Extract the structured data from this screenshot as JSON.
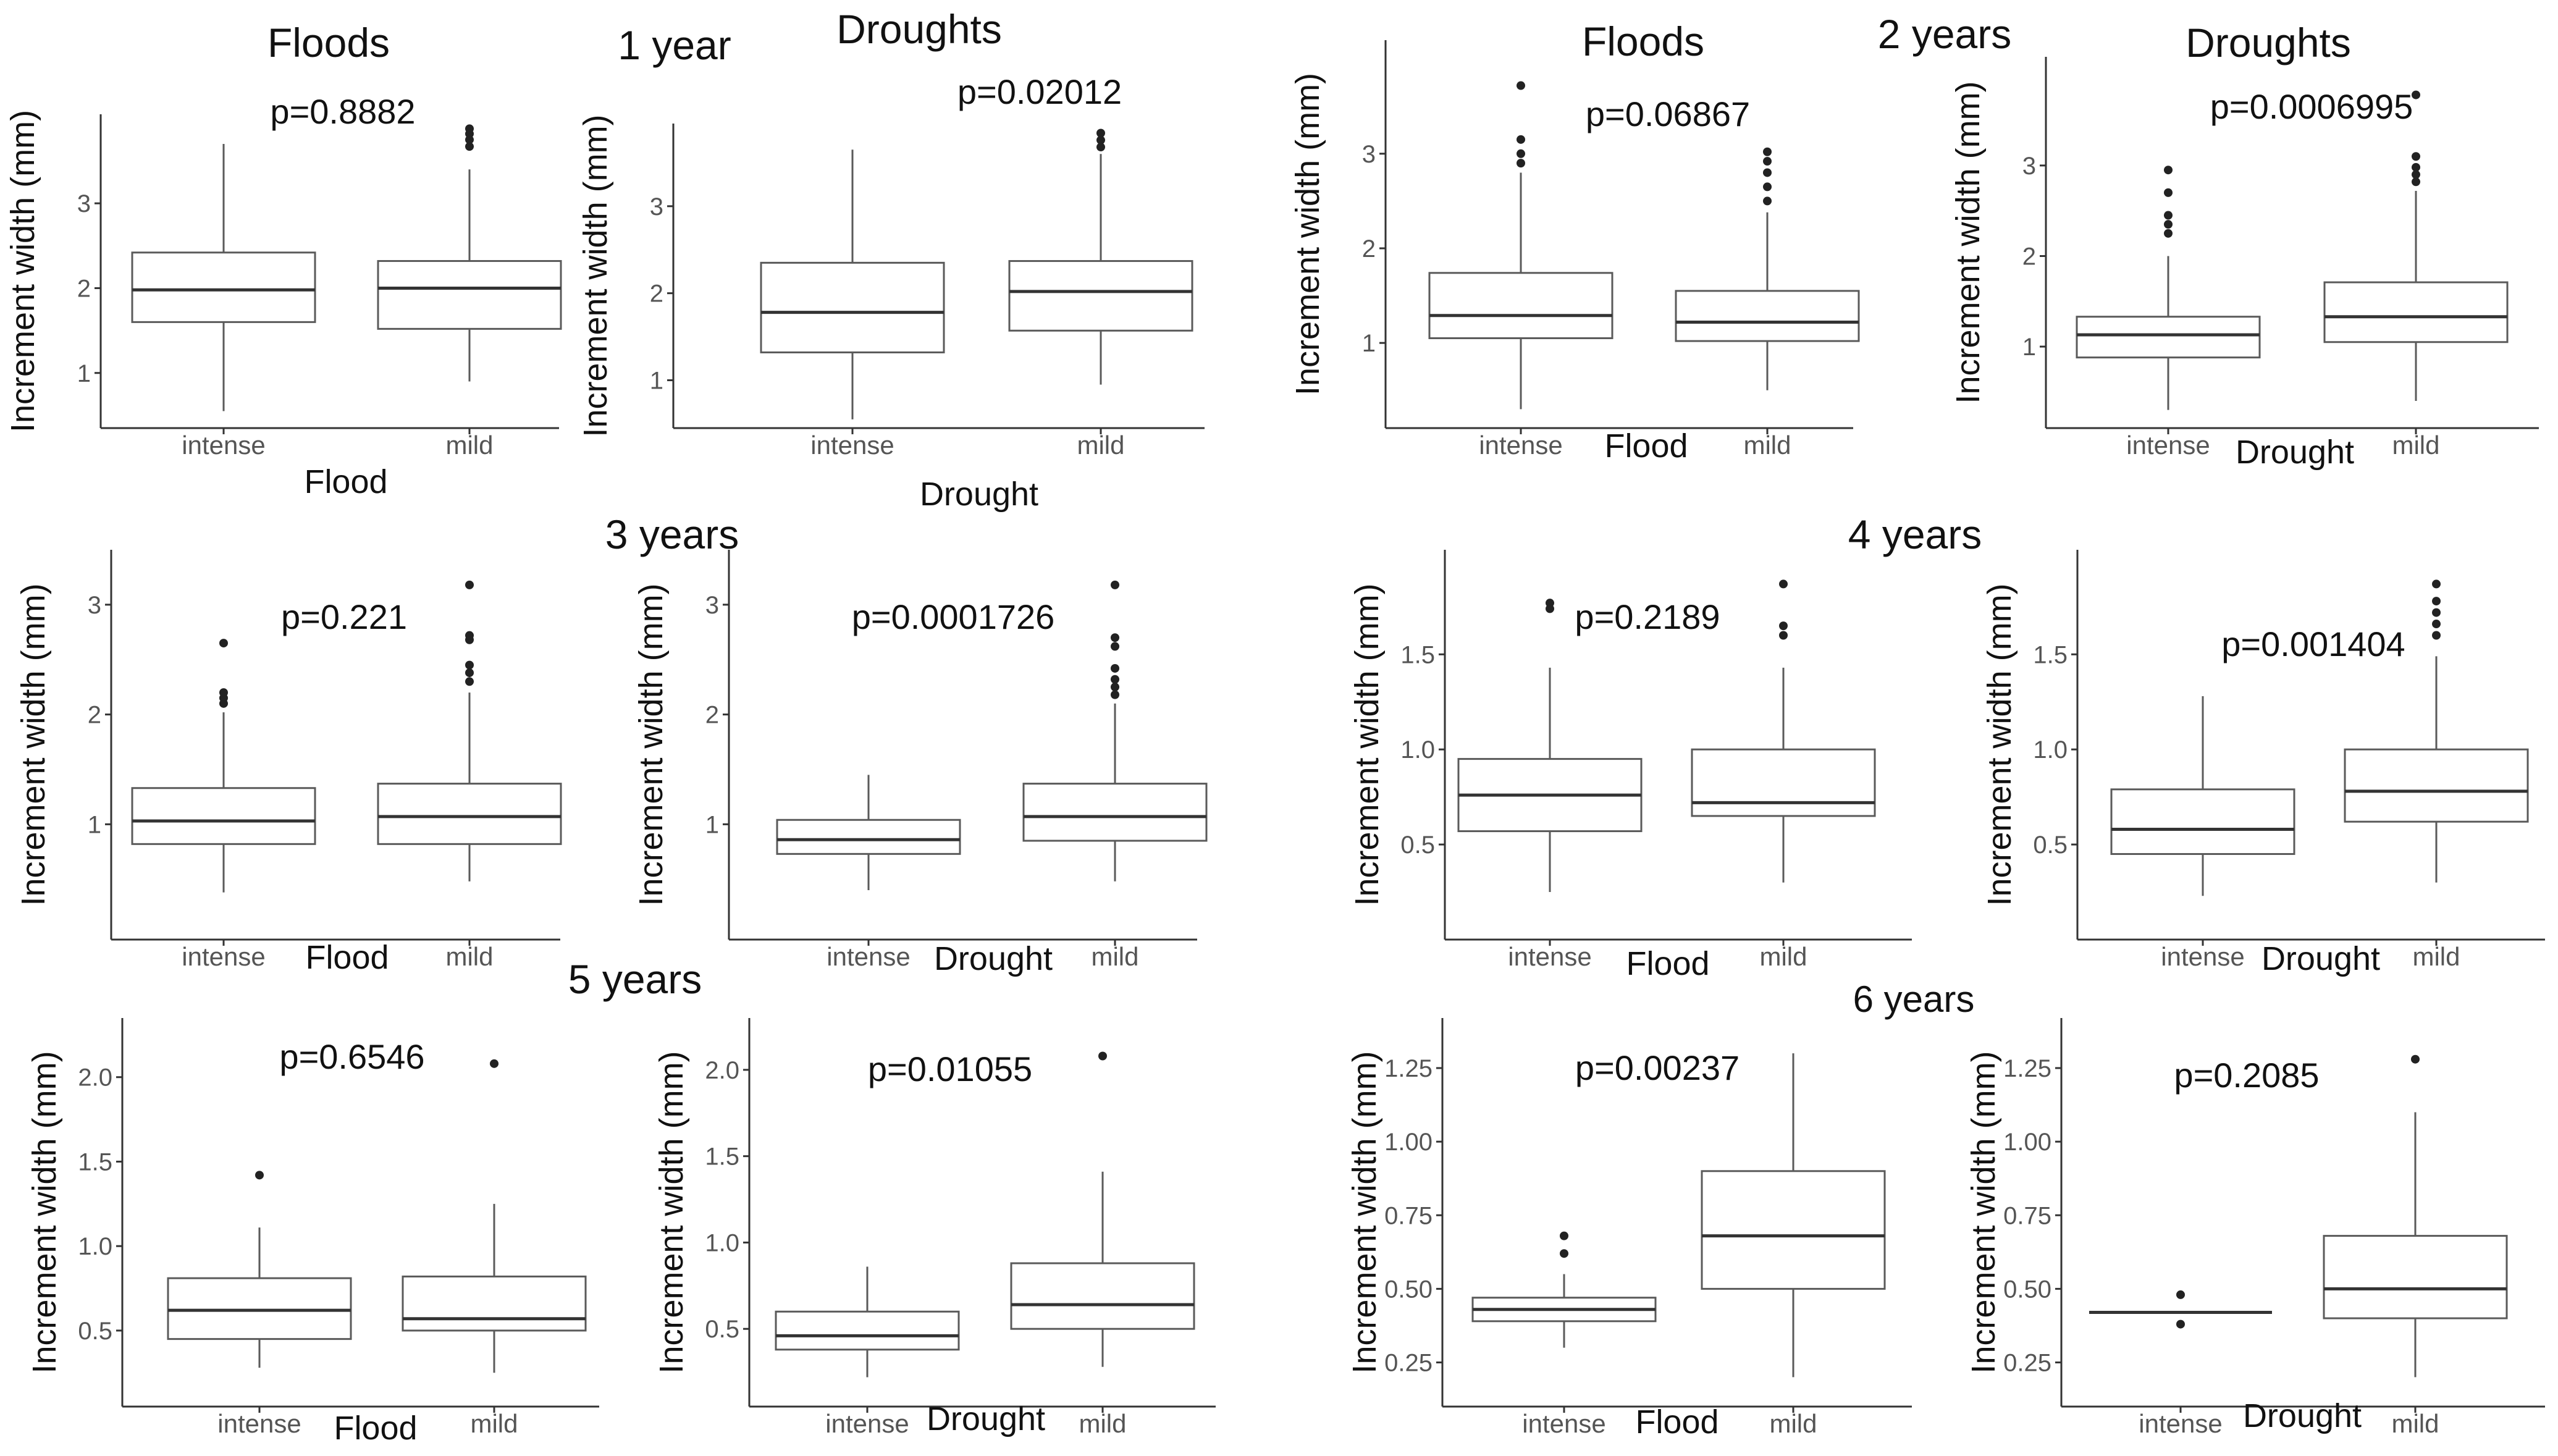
{
  "figure": {
    "column_titles": {
      "flood": "Floods",
      "drought": "Droughts"
    },
    "period_labels": [
      "1 year",
      "2 years",
      "3 years",
      "4 years",
      "5 years",
      "6 years"
    ]
  },
  "style": {
    "box_stroke": "#5a5a5a",
    "median_stroke": "#333333",
    "outlier_fill": "#222222",
    "axis_color": "#333333",
    "text_color": "#111111",
    "tick_label_color": "#555555"
  },
  "chart_data": [
    {
      "id": "y1-flood",
      "type": "boxplot",
      "period": "1 year",
      "title": "Floods",
      "xlabel": "Flood",
      "ylabel": "Increment width (mm)",
      "p_label": "p=0.8882",
      "ylim": [
        0.35,
        4.05
      ],
      "yticks": [
        1,
        2,
        3
      ],
      "ytick_labels": [
        "1",
        "2",
        "3"
      ],
      "groups": [
        {
          "category": "intense",
          "whisker_low": 0.55,
          "q1": 1.6,
          "median": 1.98,
          "q3": 2.42,
          "whisker_high": 3.7,
          "outliers": []
        },
        {
          "category": "mild",
          "whisker_low": 0.9,
          "q1": 1.52,
          "median": 2.0,
          "q3": 2.32,
          "whisker_high": 3.4,
          "outliers": [
            3.67,
            3.75,
            3.82,
            3.88
          ]
        }
      ]
    },
    {
      "id": "y1-drought",
      "type": "boxplot",
      "period": "1 year",
      "title": "Droughts",
      "xlabel": "Drought",
      "ylabel": "Increment width (mm)",
      "p_label": "p=0.02012",
      "ylim": [
        0.45,
        3.95
      ],
      "yticks": [
        1,
        2,
        3
      ],
      "ytick_labels": [
        "1",
        "2",
        "3"
      ],
      "groups": [
        {
          "category": "intense",
          "whisker_low": 0.55,
          "q1": 1.32,
          "median": 1.78,
          "q3": 2.35,
          "whisker_high": 3.65,
          "outliers": []
        },
        {
          "category": "mild",
          "whisker_low": 0.95,
          "q1": 1.57,
          "median": 2.02,
          "q3": 2.37,
          "whisker_high": 3.6,
          "outliers": [
            3.68,
            3.76,
            3.84
          ]
        }
      ]
    },
    {
      "id": "y2-flood",
      "type": "boxplot",
      "period": "2 years",
      "title": "Floods",
      "xlabel": "Flood",
      "ylabel": "Increment width (mm)",
      "p_label": "p=0.06867",
      "ylim": [
        0.1,
        4.2
      ],
      "yticks": [
        1,
        2,
        3
      ],
      "ytick_labels": [
        "1",
        "2",
        "3"
      ],
      "groups": [
        {
          "category": "intense",
          "whisker_low": 0.3,
          "q1": 1.05,
          "median": 1.29,
          "q3": 1.74,
          "whisker_high": 2.8,
          "outliers": [
            2.9,
            3.0,
            3.15,
            3.72
          ]
        },
        {
          "category": "mild",
          "whisker_low": 0.5,
          "q1": 1.02,
          "median": 1.22,
          "q3": 1.55,
          "whisker_high": 2.38,
          "outliers": [
            2.5,
            2.65,
            2.8,
            2.92,
            3.02
          ]
        }
      ]
    },
    {
      "id": "y2-drought",
      "type": "boxplot",
      "period": "2 years",
      "title": "Droughts",
      "xlabel": "Drought",
      "ylabel": "Increment width (mm)",
      "p_label": "p=0.0006995",
      "ylim": [
        0.1,
        4.2
      ],
      "yticks": [
        1,
        2,
        3
      ],
      "ytick_labels": [
        "1",
        "2",
        "3"
      ],
      "groups": [
        {
          "category": "intense",
          "whisker_low": 0.3,
          "q1": 0.88,
          "median": 1.13,
          "q3": 1.33,
          "whisker_high": 2.0,
          "outliers": [
            2.25,
            2.35,
            2.45,
            2.7,
            2.95
          ]
        },
        {
          "category": "mild",
          "whisker_low": 0.4,
          "q1": 1.05,
          "median": 1.33,
          "q3": 1.71,
          "whisker_high": 2.72,
          "outliers": [
            2.82,
            2.9,
            2.98,
            3.1,
            3.78
          ]
        }
      ]
    },
    {
      "id": "y3-flood",
      "type": "boxplot",
      "period": "3 years",
      "title": "",
      "xlabel": "Flood",
      "ylabel": "Increment width (mm)",
      "p_label": "p=0.221",
      "ylim": [
        -0.05,
        3.5
      ],
      "yticks": [
        1,
        2,
        3
      ],
      "ytick_labels": [
        "1",
        "2",
        "3"
      ],
      "groups": [
        {
          "category": "intense",
          "whisker_low": 0.38,
          "q1": 0.82,
          "median": 1.03,
          "q3": 1.33,
          "whisker_high": 2.02,
          "outliers": [
            2.1,
            2.15,
            2.2,
            2.65
          ]
        },
        {
          "category": "mild",
          "whisker_low": 0.48,
          "q1": 0.82,
          "median": 1.07,
          "q3": 1.37,
          "whisker_high": 2.2,
          "outliers": [
            2.3,
            2.38,
            2.45,
            2.68,
            2.72,
            3.18
          ]
        }
      ]
    },
    {
      "id": "y3-drought",
      "type": "boxplot",
      "period": "3 years",
      "title": "",
      "xlabel": "Drought",
      "ylabel": "Increment width (mm)",
      "p_label": "p=0.0001726",
      "ylim": [
        -0.05,
        3.5
      ],
      "yticks": [
        1,
        2,
        3
      ],
      "ytick_labels": [
        "1",
        "2",
        "3"
      ],
      "groups": [
        {
          "category": "intense",
          "whisker_low": 0.4,
          "q1": 0.73,
          "median": 0.86,
          "q3": 1.04,
          "whisker_high": 1.45,
          "outliers": []
        },
        {
          "category": "mild",
          "whisker_low": 0.48,
          "q1": 0.85,
          "median": 1.07,
          "q3": 1.37,
          "whisker_high": 2.1,
          "outliers": [
            2.18,
            2.25,
            2.32,
            2.42,
            2.62,
            2.7,
            3.18
          ]
        }
      ]
    },
    {
      "id": "y4-flood",
      "type": "boxplot",
      "period": "4 years",
      "title": "",
      "xlabel": "Flood",
      "ylabel": "Increment width (mm)",
      "p_label": "p=0.2189",
      "ylim": [
        0.0,
        2.05
      ],
      "yticks": [
        0.5,
        1.0,
        1.5
      ],
      "ytick_labels": [
        "0.5",
        "1.0",
        "1.5"
      ],
      "groups": [
        {
          "category": "intense",
          "whisker_low": 0.25,
          "q1": 0.57,
          "median": 0.76,
          "q3": 0.95,
          "whisker_high": 1.43,
          "outliers": [
            1.74,
            1.77
          ]
        },
        {
          "category": "mild",
          "whisker_low": 0.3,
          "q1": 0.65,
          "median": 0.72,
          "q3": 1.0,
          "whisker_high": 1.43,
          "outliers": [
            1.6,
            1.65,
            1.87
          ]
        }
      ]
    },
    {
      "id": "y4-drought",
      "type": "boxplot",
      "period": "4 years",
      "title": "",
      "xlabel": "Drought",
      "ylabel": "Increment width (mm)",
      "p_label": "p=0.001404",
      "ylim": [
        0.0,
        2.05
      ],
      "yticks": [
        0.5,
        1.0,
        1.5
      ],
      "ytick_labels": [
        "0.5",
        "1.0",
        "1.5"
      ],
      "groups": [
        {
          "category": "intense",
          "whisker_low": 0.23,
          "q1": 0.45,
          "median": 0.58,
          "q3": 0.79,
          "whisker_high": 1.28,
          "outliers": []
        },
        {
          "category": "mild",
          "whisker_low": 0.3,
          "q1": 0.62,
          "median": 0.78,
          "q3": 1.0,
          "whisker_high": 1.49,
          "outliers": [
            1.6,
            1.66,
            1.72,
            1.78,
            1.87
          ]
        }
      ]
    },
    {
      "id": "y5-flood",
      "type": "boxplot",
      "period": "5 years",
      "title": "",
      "xlabel": "Flood",
      "ylabel": "Increment width (mm)",
      "p_label": "p=0.6546",
      "ylim": [
        0.05,
        2.35
      ],
      "yticks": [
        0.5,
        1.0,
        1.5,
        2.0
      ],
      "ytick_labels": [
        "0.5",
        "1.0",
        "1.5",
        "2.0"
      ],
      "groups": [
        {
          "category": "intense",
          "whisker_low": 0.28,
          "q1": 0.45,
          "median": 0.62,
          "q3": 0.81,
          "whisker_high": 1.11,
          "outliers": [
            1.42
          ]
        },
        {
          "category": "mild",
          "whisker_low": 0.25,
          "q1": 0.5,
          "median": 0.57,
          "q3": 0.82,
          "whisker_high": 1.25,
          "outliers": [
            2.08
          ]
        }
      ]
    },
    {
      "id": "y5-drought",
      "type": "boxplot",
      "period": "5 years",
      "title": "",
      "xlabel": "Drought",
      "ylabel": "Increment width (mm)",
      "p_label": "p=0.01055",
      "ylim": [
        0.05,
        2.3
      ],
      "yticks": [
        0.5,
        1.0,
        1.5,
        2.0
      ],
      "ytick_labels": [
        "0.5",
        "1.0",
        "1.5",
        "2.0"
      ],
      "groups": [
        {
          "category": "intense",
          "whisker_low": 0.22,
          "q1": 0.38,
          "median": 0.46,
          "q3": 0.6,
          "whisker_high": 0.86,
          "outliers": []
        },
        {
          "category": "mild",
          "whisker_low": 0.28,
          "q1": 0.5,
          "median": 0.64,
          "q3": 0.88,
          "whisker_high": 1.41,
          "outliers": [
            2.08
          ]
        }
      ]
    },
    {
      "id": "y6-flood",
      "type": "boxplot",
      "period": "6 years",
      "title": "",
      "xlabel": "Flood",
      "ylabel": "Increment width (mm)",
      "p_label": "p=0.00237",
      "ylim": [
        0.1,
        1.42
      ],
      "yticks": [
        0.25,
        0.5,
        0.75,
        1.0,
        1.25
      ],
      "ytick_labels": [
        "0.25",
        "0.50",
        "0.75",
        "1.00",
        "1.25"
      ],
      "groups": [
        {
          "category": "intense",
          "whisker_low": 0.3,
          "q1": 0.39,
          "median": 0.43,
          "q3": 0.47,
          "whisker_high": 0.55,
          "outliers": [
            0.62,
            0.68
          ]
        },
        {
          "category": "mild",
          "whisker_low": 0.2,
          "q1": 0.5,
          "median": 0.68,
          "q3": 0.9,
          "whisker_high": 1.3,
          "outliers": []
        }
      ]
    },
    {
      "id": "y6-drought",
      "type": "boxplot",
      "period": "6 years",
      "title": "",
      "xlabel": "Drought",
      "ylabel": "Increment width (mm)",
      "p_label": "p=0.2085",
      "ylim": [
        0.1,
        1.42
      ],
      "yticks": [
        0.25,
        0.5,
        0.75,
        1.0,
        1.25
      ],
      "ytick_labels": [
        "0.25",
        "0.50",
        "0.75",
        "1.00",
        "1.25"
      ],
      "groups": [
        {
          "category": "intense",
          "whisker_low": 0.42,
          "q1": 0.42,
          "median": 0.42,
          "q3": 0.42,
          "whisker_high": 0.42,
          "outliers": [
            0.38,
            0.48
          ]
        },
        {
          "category": "mild",
          "whisker_low": 0.2,
          "q1": 0.4,
          "median": 0.5,
          "q3": 0.68,
          "whisker_high": 1.1,
          "outliers": [
            1.28
          ]
        }
      ]
    }
  ]
}
